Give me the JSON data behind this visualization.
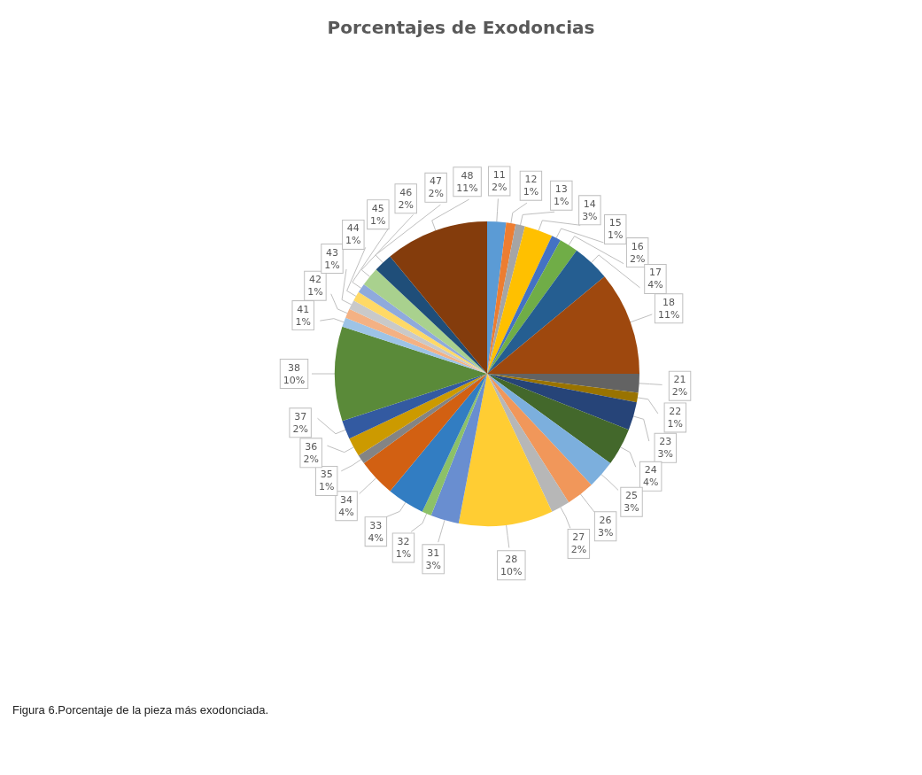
{
  "chart_data": {
    "type": "pie",
    "title": "Porcentajes de Exodoncias",
    "categories": [
      "11",
      "12",
      "13",
      "14",
      "15",
      "16",
      "17",
      "18",
      "21",
      "22",
      "23",
      "24",
      "25",
      "26",
      "27",
      "28",
      "31",
      "32",
      "33",
      "34",
      "35",
      "36",
      "37",
      "38",
      "41",
      "42",
      "43",
      "44",
      "45",
      "46",
      "47",
      "48"
    ],
    "values": [
      2,
      1,
      1,
      3,
      1,
      2,
      4,
      11,
      2,
      1,
      3,
      4,
      3,
      3,
      2,
      10,
      3,
      1,
      4,
      4,
      1,
      2,
      2,
      10,
      1,
      1,
      1,
      1,
      1,
      2,
      2,
      11
    ],
    "colors": [
      "#5b9bd5",
      "#ed7d31",
      "#a5a5a5",
      "#ffc000",
      "#4472c4",
      "#70ad47",
      "#255e91",
      "#9e480e",
      "#636363",
      "#997300",
      "#264478",
      "#43682b",
      "#7cafdd",
      "#f1975a",
      "#b7b7b7",
      "#ffcd33",
      "#698ed0",
      "#8cc168",
      "#327dc2",
      "#d26012",
      "#848484",
      "#cc9a00",
      "#335aa1",
      "#5a8a39",
      "#9dc3e6",
      "#f4b183",
      "#c9c9c9",
      "#ffd966",
      "#8faadc",
      "#a9d18e",
      "#1f4e79",
      "#843c0c"
    ],
    "value_labels": [
      "2%",
      "1%",
      "1%",
      "3%",
      "1%",
      "2%",
      "4%",
      "11%",
      "2%",
      "1%",
      "3%",
      "4%",
      "3%",
      "3%",
      "2%",
      "10%",
      "3%",
      "1%",
      "4%",
      "4%",
      "1%",
      "2%",
      "2%",
      "10%",
      "1%",
      "1%",
      "1%",
      "1%",
      "1%",
      "2%",
      "2%",
      "11%"
    ],
    "legend": false,
    "annotations": [
      "Figura 6.Porcentaje de la pieza más exodonciada."
    ]
  }
}
